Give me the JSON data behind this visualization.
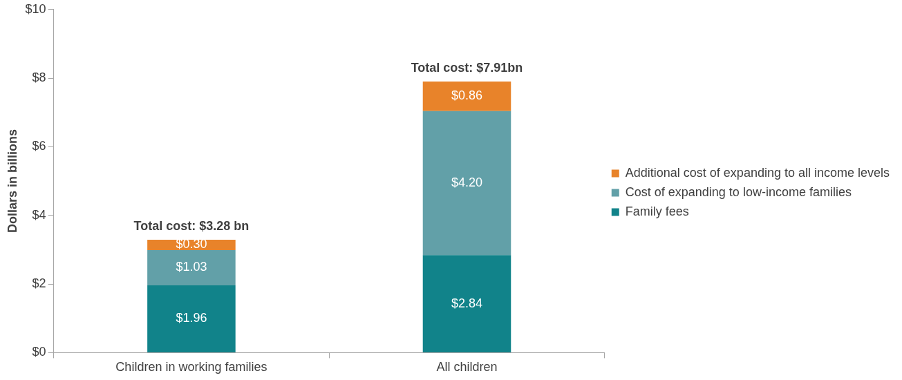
{
  "chart_data": {
    "type": "bar",
    "stacked": true,
    "ylabel": "Dollars in billions",
    "categories": [
      "Children in working families",
      "All children"
    ],
    "series": [
      {
        "name": "Family fees",
        "color": "#11838a",
        "values": [
          1.96,
          2.84
        ],
        "value_labels": [
          "$1.96",
          "$2.84"
        ]
      },
      {
        "name": "Cost of expanding to low-income families",
        "color": "#62a0a8",
        "values": [
          1.03,
          4.2
        ],
        "value_labels": [
          "$1.03",
          "$4.20"
        ]
      },
      {
        "name": "Additional cost of expanding to all income levels",
        "color": "#e8832a",
        "values": [
          0.3,
          0.86
        ],
        "value_labels": [
          "$0.30",
          "$0.86"
        ]
      }
    ],
    "totals": [
      "Total cost: $3.28 bn",
      "Total cost: $7.91bn"
    ],
    "ylim": [
      0,
      10
    ],
    "yticks": [
      {
        "value": 0,
        "label": "$0"
      },
      {
        "value": 2,
        "label": "$2"
      },
      {
        "value": 4,
        "label": "$4"
      },
      {
        "value": 6,
        "label": "$6"
      },
      {
        "value": 8,
        "label": "$8"
      },
      {
        "value": 10,
        "label": "$10"
      }
    ],
    "grid": false,
    "legend": "right"
  }
}
